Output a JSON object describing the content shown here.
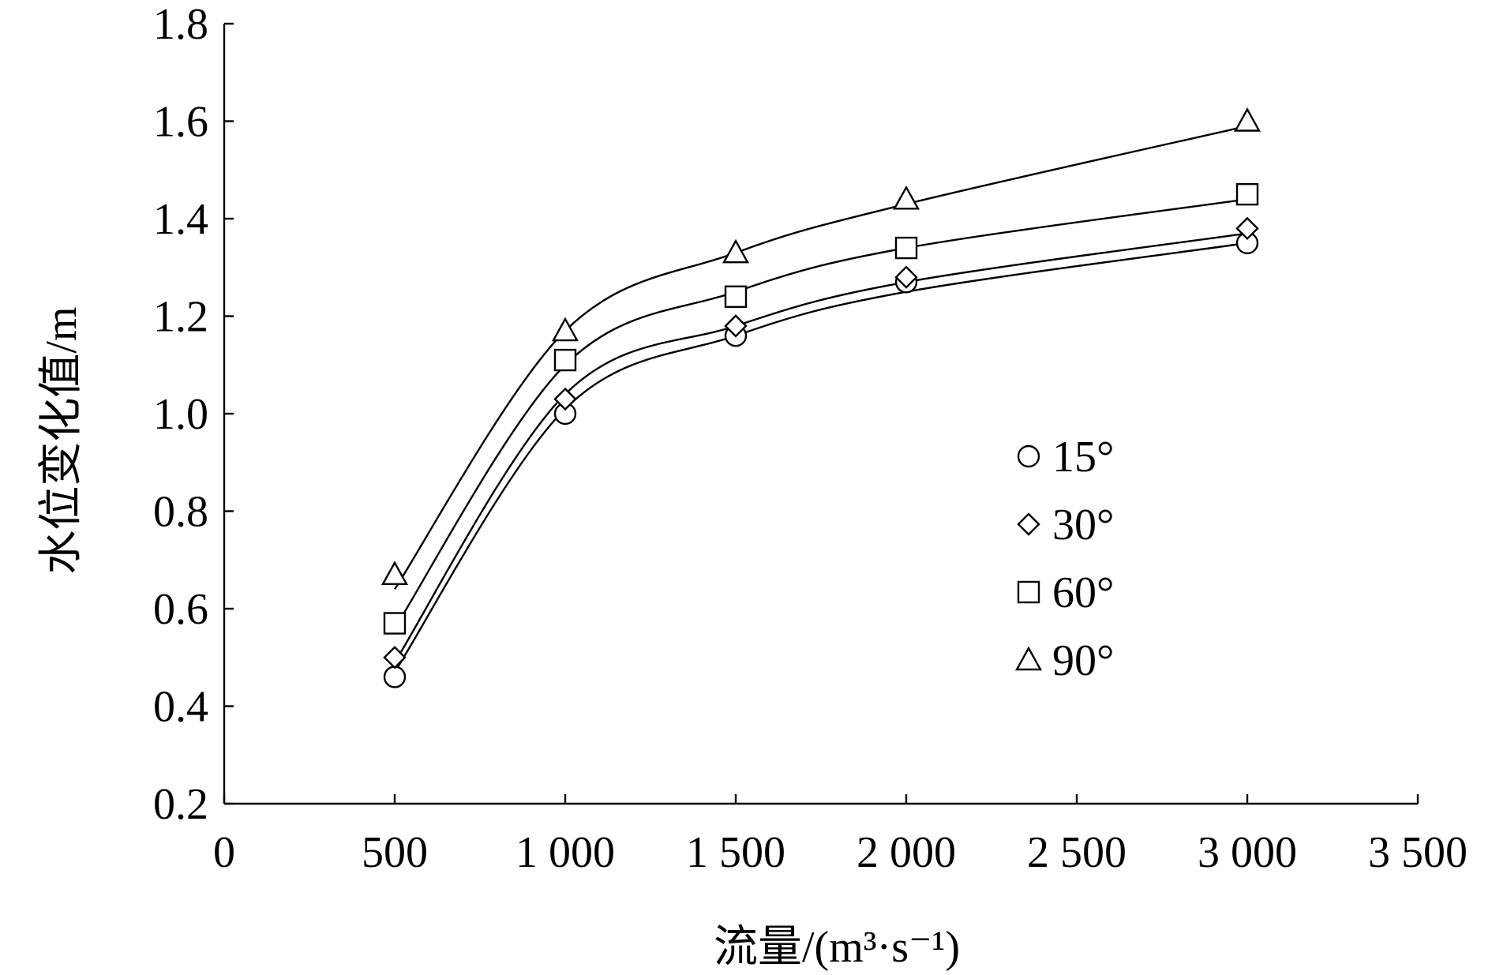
{
  "chart_data": {
    "type": "scatter",
    "x": [
      500,
      1000,
      1500,
      2000,
      3000
    ],
    "xlabel": "流量/(m³·s⁻¹)",
    "ylabel": "水位变化值/m",
    "xlim": [
      0,
      3500
    ],
    "ylim": [
      0.2,
      1.8
    ],
    "xticks": [
      0,
      500,
      1000,
      1500,
      2000,
      2500,
      3000,
      3500
    ],
    "xtick_labels": [
      "0",
      "500",
      "1 000",
      "1 500",
      "2 000",
      "2 500",
      "3 000",
      "3 500"
    ],
    "yticks": [
      0.2,
      0.4,
      0.6,
      0.8,
      1.0,
      1.2,
      1.4,
      1.6,
      1.8
    ],
    "ytick_labels": [
      "0.2",
      "0.4",
      "0.6",
      "0.8",
      "1.0",
      "1.2",
      "1.4",
      "1.6",
      "1.8"
    ],
    "grid": false,
    "legend_position": "center-right",
    "series": [
      {
        "name": "15°",
        "marker": "circle",
        "values": [
          0.46,
          1.0,
          1.16,
          1.27,
          1.35
        ],
        "fit": [
          0.47,
          1.01,
          1.16,
          1.25,
          1.35
        ]
      },
      {
        "name": "30°",
        "marker": "diamond",
        "values": [
          0.5,
          1.03,
          1.18,
          1.28,
          1.38
        ],
        "fit": [
          0.49,
          1.04,
          1.18,
          1.27,
          1.37
        ]
      },
      {
        "name": "60°",
        "marker": "square",
        "values": [
          0.57,
          1.11,
          1.24,
          1.34,
          1.45
        ],
        "fit": [
          0.56,
          1.1,
          1.25,
          1.34,
          1.44
        ]
      },
      {
        "name": "90°",
        "marker": "triangle",
        "values": [
          0.67,
          1.17,
          1.33,
          1.44,
          1.6
        ],
        "fit": [
          0.64,
          1.17,
          1.33,
          1.43,
          1.59
        ]
      }
    ]
  }
}
